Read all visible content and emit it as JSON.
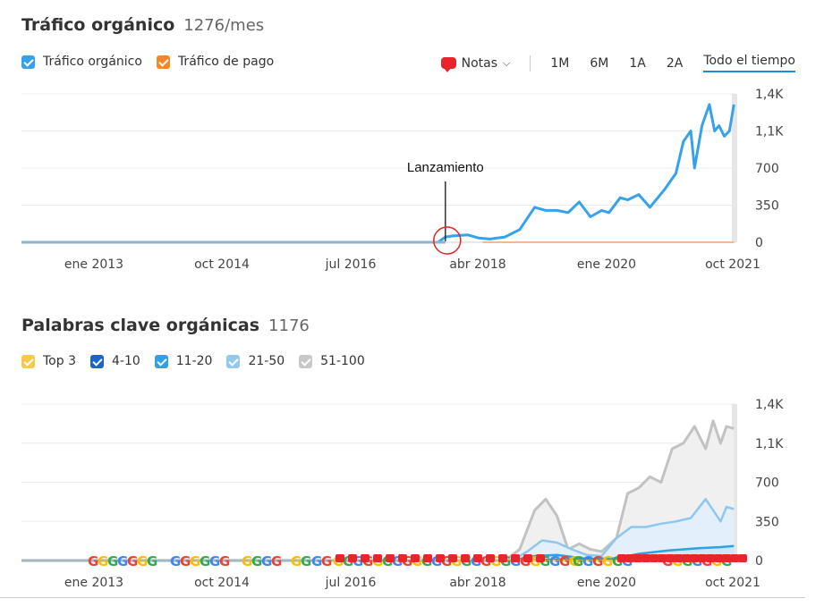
{
  "traffic_section": {
    "title": "Tráfico orgánico",
    "value": "1276/mes",
    "legend": [
      {
        "label": "Tráfico orgánico",
        "color": "#36a2eb"
      },
      {
        "label": "Tráfico de pago",
        "color": "#f4862b"
      }
    ],
    "controls": {
      "notes_label": "Notas",
      "ranges": [
        "1M",
        "6M",
        "1A",
        "2A"
      ],
      "active_range": "Todo el tiempo"
    }
  },
  "keywords_section": {
    "title": "Palabras clave orgánicas",
    "value": "1176",
    "legend": [
      {
        "label": "Top 3",
        "color": "#f7c948"
      },
      {
        "label": "4-10",
        "color": "#1b65c4"
      },
      {
        "label": "11-20",
        "color": "#30a0e8"
      },
      {
        "label": "21-50",
        "color": "#92c9f0"
      },
      {
        "label": "51-100",
        "color": "#c8c8c8"
      }
    ]
  },
  "chart_data": [
    {
      "type": "line",
      "title": "Tráfico orgánico",
      "x_tick_labels": [
        "ene 2013",
        "oct 2014",
        "jul 2016",
        "abr 2018",
        "ene 2020",
        "oct 2021"
      ],
      "y_tick_labels": [
        "0",
        "350",
        "700",
        "1,1K",
        "1,4K"
      ],
      "ylim": [
        0,
        1400
      ],
      "xlim": [
        2012.3,
        2021.9
      ],
      "grid": true,
      "annotation": {
        "label": "Lanzamiento",
        "x": 2018.0,
        "y": 10
      },
      "series": [
        {
          "name": "Tráfico orgánico",
          "color": "#36a2eb",
          "x": [
            2012.3,
            2017.9,
            2018.0,
            2018.1,
            2018.3,
            2018.45,
            2018.6,
            2018.8,
            2019.0,
            2019.2,
            2019.35,
            2019.5,
            2019.65,
            2019.8,
            2019.95,
            2020.1,
            2020.2,
            2020.35,
            2020.45,
            2020.6,
            2020.75,
            2020.95,
            2021.1,
            2021.2,
            2021.3,
            2021.35,
            2021.45,
            2021.55,
            2021.62,
            2021.68,
            2021.75,
            2021.82,
            2021.88
          ],
          "y": [
            0,
            0,
            50,
            60,
            70,
            40,
            30,
            50,
            120,
            330,
            300,
            300,
            280,
            380,
            240,
            300,
            280,
            420,
            400,
            450,
            330,
            500,
            650,
            950,
            1050,
            700,
            1100,
            1300,
            1050,
            1100,
            1000,
            1050,
            1300
          ]
        },
        {
          "name": "Tráfico de pago",
          "color": "#f4862b",
          "x": [
            2018.5,
            2021.88
          ],
          "y": [
            0,
            0
          ]
        }
      ]
    },
    {
      "type": "area",
      "title": "Palabras clave orgánicas",
      "x_tick_labels": [
        "ene 2013",
        "oct 2014",
        "jul 2016",
        "abr 2018",
        "ene 2020",
        "oct 2021"
      ],
      "y_tick_labels": [
        "0",
        "350",
        "700",
        "1,1K",
        "1,4K"
      ],
      "ylim": [
        0,
        1400
      ],
      "xlim": [
        2012.3,
        2021.9
      ],
      "grid": true,
      "series": [
        {
          "name": "51-100",
          "color": "#c8c8c8",
          "x": [
            2012.3,
            2018.8,
            2019.0,
            2019.2,
            2019.35,
            2019.5,
            2019.65,
            2019.8,
            2019.95,
            2020.1,
            2020.3,
            2020.45,
            2020.6,
            2020.75,
            2020.9,
            2021.05,
            2021.2,
            2021.35,
            2021.5,
            2021.6,
            2021.7,
            2021.78,
            2021.88
          ],
          "y": [
            0,
            0,
            100,
            450,
            550,
            400,
            100,
            150,
            100,
            80,
            200,
            600,
            650,
            750,
            700,
            1000,
            1050,
            1200,
            1000,
            1250,
            1050,
            1200,
            1180
          ]
        },
        {
          "name": "21-50",
          "color": "#92c9f0",
          "x": [
            2012.3,
            2018.9,
            2019.1,
            2019.3,
            2019.5,
            2019.7,
            2019.9,
            2020.1,
            2020.3,
            2020.5,
            2020.7,
            2020.9,
            2021.1,
            2021.3,
            2021.5,
            2021.6,
            2021.7,
            2021.78,
            2021.88
          ],
          "y": [
            0,
            0,
            80,
            180,
            160,
            100,
            50,
            40,
            200,
            300,
            300,
            330,
            350,
            380,
            550,
            450,
            350,
            480,
            460
          ]
        },
        {
          "name": "11-20",
          "color": "#30a0e8",
          "x": [
            2012.3,
            2018.9,
            2019.2,
            2019.5,
            2019.9,
            2020.3,
            2020.6,
            2021.0,
            2021.4,
            2021.7,
            2021.88
          ],
          "y": [
            0,
            0,
            40,
            50,
            15,
            20,
            60,
            90,
            110,
            120,
            130
          ]
        },
        {
          "name": "4-10",
          "color": "#1b65c4",
          "x": [
            2012.3,
            2019.0,
            2019.6,
            2020.2,
            2020.7,
            2021.2,
            2021.6,
            2021.88
          ],
          "y": [
            0,
            0,
            10,
            5,
            15,
            25,
            35,
            40
          ]
        },
        {
          "name": "Top 3",
          "color": "#f7c948",
          "x": [
            2012.3,
            2021.88
          ],
          "y": [
            0,
            0
          ]
        }
      ]
    }
  ]
}
